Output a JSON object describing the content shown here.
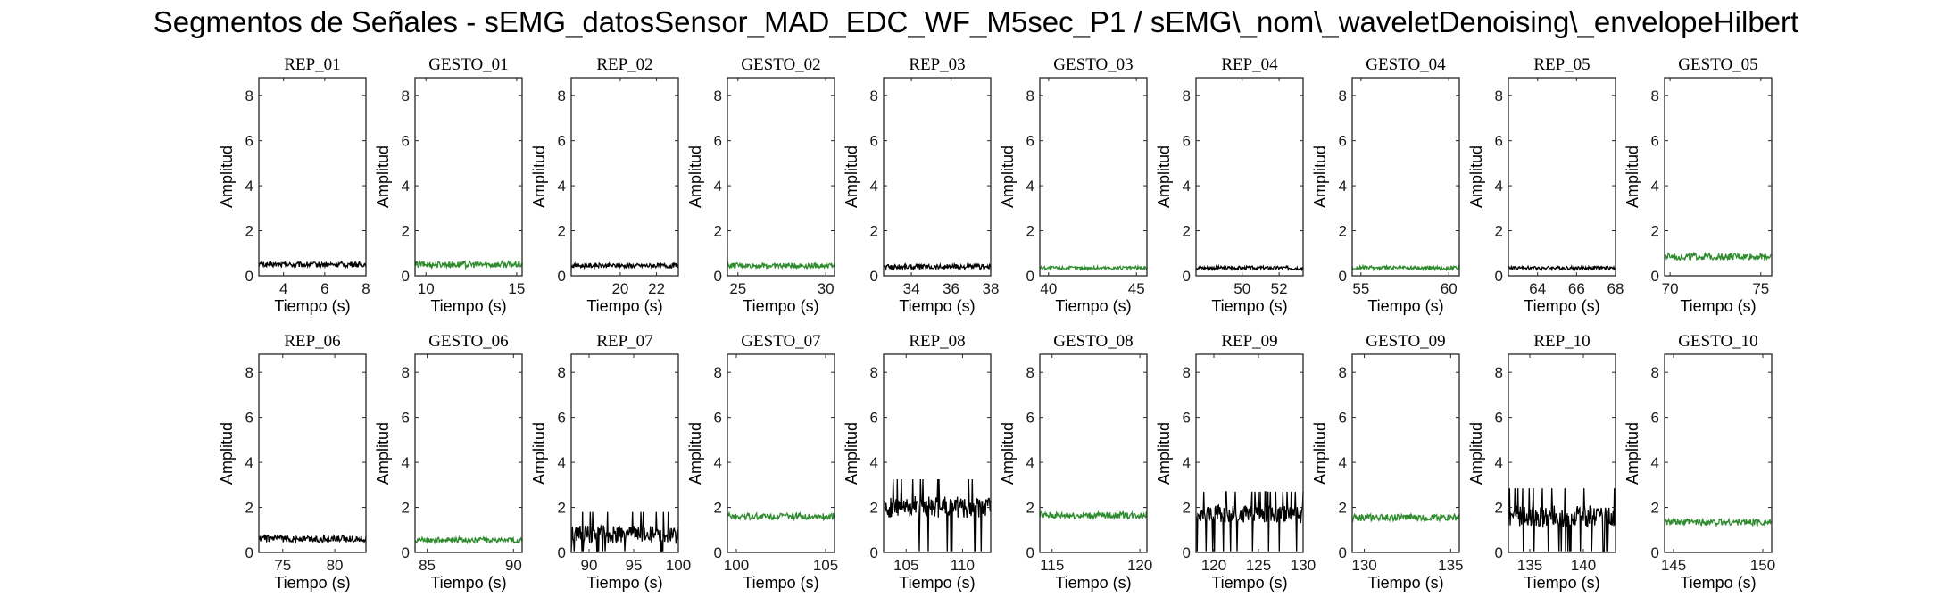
{
  "title": "Segmentos de Señales - sEMG_datosSensor_MAD_EDC_WF_M5sec_P1 / sEMG\\_nom\\_waveletDenoising\\_envelopeHilbert",
  "colors": {
    "rep": "#000000",
    "gesto": "#2e8b2e",
    "axes": "#262626"
  },
  "chart_data": [
    {
      "type": "line",
      "title": "REP_01",
      "xlabel": "Tiempo (s)",
      "ylabel": "Amplitud",
      "xlim": [
        2.8,
        8
      ],
      "ylim": [
        0,
        8.8
      ],
      "xticks": [
        4,
        6,
        8
      ],
      "yticks": [
        0,
        2,
        4,
        6,
        8
      ],
      "series": [
        {
          "kind": "rep",
          "level": 0.5,
          "noise": 0.12
        }
      ]
    },
    {
      "type": "line",
      "title": "GESTO_01",
      "xlabel": "Tiempo (s)",
      "ylabel": "Amplitud",
      "xlim": [
        9.4,
        15.3
      ],
      "ylim": [
        0,
        8.8
      ],
      "xticks": [
        10,
        15
      ],
      "yticks": [
        0,
        2,
        4,
        6,
        8
      ],
      "series": [
        {
          "kind": "gesto",
          "level": 0.5,
          "noise": 0.15
        }
      ]
    },
    {
      "type": "line",
      "title": "REP_02",
      "xlabel": "Tiempo (s)",
      "ylabel": "Amplitud",
      "xlim": [
        17.3,
        23.2
      ],
      "ylim": [
        0,
        8.8
      ],
      "xticks": [
        20,
        22
      ],
      "yticks": [
        0,
        2,
        4,
        6,
        8
      ],
      "series": [
        {
          "kind": "rep",
          "level": 0.45,
          "noise": 0.1
        }
      ]
    },
    {
      "type": "line",
      "title": "GESTO_02",
      "xlabel": "Tiempo (s)",
      "ylabel": "Amplitud",
      "xlim": [
        24.4,
        30.5
      ],
      "ylim": [
        0,
        8.8
      ],
      "xticks": [
        25,
        30
      ],
      "yticks": [
        0,
        2,
        4,
        6,
        8
      ],
      "series": [
        {
          "kind": "gesto",
          "level": 0.45,
          "noise": 0.12
        }
      ]
    },
    {
      "type": "line",
      "title": "REP_03",
      "xlabel": "Tiempo (s)",
      "ylabel": "Amplitud",
      "xlim": [
        32.6,
        38
      ],
      "ylim": [
        0,
        8.8
      ],
      "xticks": [
        34,
        36,
        38
      ],
      "yticks": [
        0,
        2,
        4,
        6,
        8
      ],
      "series": [
        {
          "kind": "rep",
          "level": 0.4,
          "noise": 0.12
        }
      ]
    },
    {
      "type": "line",
      "title": "GESTO_03",
      "xlabel": "Tiempo (s)",
      "ylabel": "Amplitud",
      "xlim": [
        39.5,
        45.6
      ],
      "ylim": [
        0,
        8.8
      ],
      "xticks": [
        40,
        45
      ],
      "yticks": [
        0,
        2,
        4,
        6,
        8
      ],
      "series": [
        {
          "kind": "gesto",
          "level": 0.35,
          "noise": 0.08
        }
      ]
    },
    {
      "type": "line",
      "title": "REP_04",
      "xlabel": "Tiempo (s)",
      "ylabel": "Amplitud",
      "xlim": [
        47.5,
        53.3
      ],
      "ylim": [
        0,
        8.8
      ],
      "xticks": [
        50,
        52
      ],
      "yticks": [
        0,
        2,
        4,
        6,
        8
      ],
      "series": [
        {
          "kind": "rep",
          "level": 0.35,
          "noise": 0.08
        }
      ]
    },
    {
      "type": "line",
      "title": "GESTO_04",
      "xlabel": "Tiempo (s)",
      "ylabel": "Amplitud",
      "xlim": [
        54.5,
        60.6
      ],
      "ylim": [
        0,
        8.8
      ],
      "xticks": [
        55,
        60
      ],
      "yticks": [
        0,
        2,
        4,
        6,
        8
      ],
      "series": [
        {
          "kind": "gesto",
          "level": 0.35,
          "noise": 0.09
        }
      ]
    },
    {
      "type": "line",
      "title": "REP_05",
      "xlabel": "Tiempo (s)",
      "ylabel": "Amplitud",
      "xlim": [
        62.5,
        68
      ],
      "ylim": [
        0,
        8.8
      ],
      "xticks": [
        64,
        66,
        68
      ],
      "yticks": [
        0,
        2,
        4,
        6,
        8
      ],
      "series": [
        {
          "kind": "rep",
          "level": 0.35,
          "noise": 0.08
        }
      ]
    },
    {
      "type": "line",
      "title": "GESTO_05",
      "xlabel": "Tiempo (s)",
      "ylabel": "Amplitud",
      "xlim": [
        69.7,
        75.6
      ],
      "ylim": [
        0,
        8.8
      ],
      "xticks": [
        70,
        75
      ],
      "yticks": [
        0,
        2,
        4,
        6,
        8
      ],
      "series": [
        {
          "kind": "gesto",
          "level": 0.85,
          "noise": 0.15
        }
      ]
    },
    {
      "type": "line",
      "title": "REP_06",
      "xlabel": "Tiempo (s)",
      "ylabel": "Amplitud",
      "xlim": [
        72.7,
        83
      ],
      "ylim": [
        0,
        8.8
      ],
      "xticks": [
        75,
        80
      ],
      "yticks": [
        0,
        2,
        4,
        6,
        8
      ],
      "series": [
        {
          "kind": "rep",
          "level": 0.6,
          "noise": 0.15
        }
      ]
    },
    {
      "type": "line",
      "title": "GESTO_06",
      "xlabel": "Tiempo (s)",
      "ylabel": "Amplitud",
      "xlim": [
        84.3,
        90.5
      ],
      "ylim": [
        0,
        8.8
      ],
      "xticks": [
        85,
        90
      ],
      "yticks": [
        0,
        2,
        4,
        6,
        8
      ],
      "series": [
        {
          "kind": "gesto",
          "level": 0.55,
          "noise": 0.12
        }
      ]
    },
    {
      "type": "line",
      "title": "REP_07",
      "xlabel": "Tiempo (s)",
      "ylabel": "Amplitud",
      "xlim": [
        88,
        100
      ],
      "ylim": [
        0,
        8.8
      ],
      "xticks": [
        90,
        95,
        100
      ],
      "yticks": [
        0,
        2,
        4,
        6,
        8
      ],
      "series": [
        {
          "kind": "rep",
          "level": 0.8,
          "noise": 0.4
        }
      ]
    },
    {
      "type": "line",
      "title": "GESTO_07",
      "xlabel": "Tiempo (s)",
      "ylabel": "Amplitud",
      "xlim": [
        99.5,
        105.5
      ],
      "ylim": [
        0,
        8.8
      ],
      "xticks": [
        100,
        105
      ],
      "yticks": [
        0,
        2,
        4,
        6,
        8
      ],
      "series": [
        {
          "kind": "gesto",
          "level": 1.6,
          "noise": 0.15
        }
      ]
    },
    {
      "type": "line",
      "title": "REP_08",
      "xlabel": "Tiempo (s)",
      "ylabel": "Amplitud",
      "xlim": [
        103,
        112.5
      ],
      "ylim": [
        0,
        8.8
      ],
      "xticks": [
        105,
        110
      ],
      "yticks": [
        0,
        2,
        4,
        6,
        8
      ],
      "series": [
        {
          "kind": "rep",
          "level": 2.0,
          "noise": 0.5
        }
      ]
    },
    {
      "type": "line",
      "title": "GESTO_08",
      "xlabel": "Tiempo (s)",
      "ylabel": "Amplitud",
      "xlim": [
        114.3,
        120.4
      ],
      "ylim": [
        0,
        8.8
      ],
      "xticks": [
        115,
        120
      ],
      "yticks": [
        0,
        2,
        4,
        6,
        8
      ],
      "series": [
        {
          "kind": "gesto",
          "level": 1.65,
          "noise": 0.15
        }
      ]
    },
    {
      "type": "line",
      "title": "REP_09",
      "xlabel": "Tiempo (s)",
      "ylabel": "Amplitud",
      "xlim": [
        118,
        130
      ],
      "ylim": [
        0,
        8.8
      ],
      "xticks": [
        120,
        125,
        130
      ],
      "yticks": [
        0,
        2,
        4,
        6,
        8
      ],
      "series": [
        {
          "kind": "rep",
          "level": 1.7,
          "noise": 0.4
        }
      ]
    },
    {
      "type": "line",
      "title": "GESTO_09",
      "xlabel": "Tiempo (s)",
      "ylabel": "Amplitud",
      "xlim": [
        129.3,
        135.5
      ],
      "ylim": [
        0,
        8.8
      ],
      "xticks": [
        130,
        135
      ],
      "yticks": [
        0,
        2,
        4,
        6,
        8
      ],
      "series": [
        {
          "kind": "gesto",
          "level": 1.55,
          "noise": 0.15
        }
      ]
    },
    {
      "type": "line",
      "title": "REP_10",
      "xlabel": "Tiempo (s)",
      "ylabel": "Amplitud",
      "xlim": [
        133,
        143
      ],
      "ylim": [
        0,
        8.8
      ],
      "xticks": [
        135,
        140
      ],
      "yticks": [
        0,
        2,
        4,
        6,
        8
      ],
      "series": [
        {
          "kind": "rep",
          "level": 1.6,
          "noise": 0.5
        }
      ]
    },
    {
      "type": "line",
      "title": "GESTO_10",
      "xlabel": "Tiempo (s)",
      "ylabel": "Amplitud",
      "xlim": [
        144.5,
        150.5
      ],
      "ylim": [
        0,
        8.8
      ],
      "xticks": [
        145,
        150
      ],
      "yticks": [
        0,
        2,
        4,
        6,
        8
      ],
      "series": [
        {
          "kind": "gesto",
          "level": 1.35,
          "noise": 0.15
        }
      ]
    }
  ]
}
